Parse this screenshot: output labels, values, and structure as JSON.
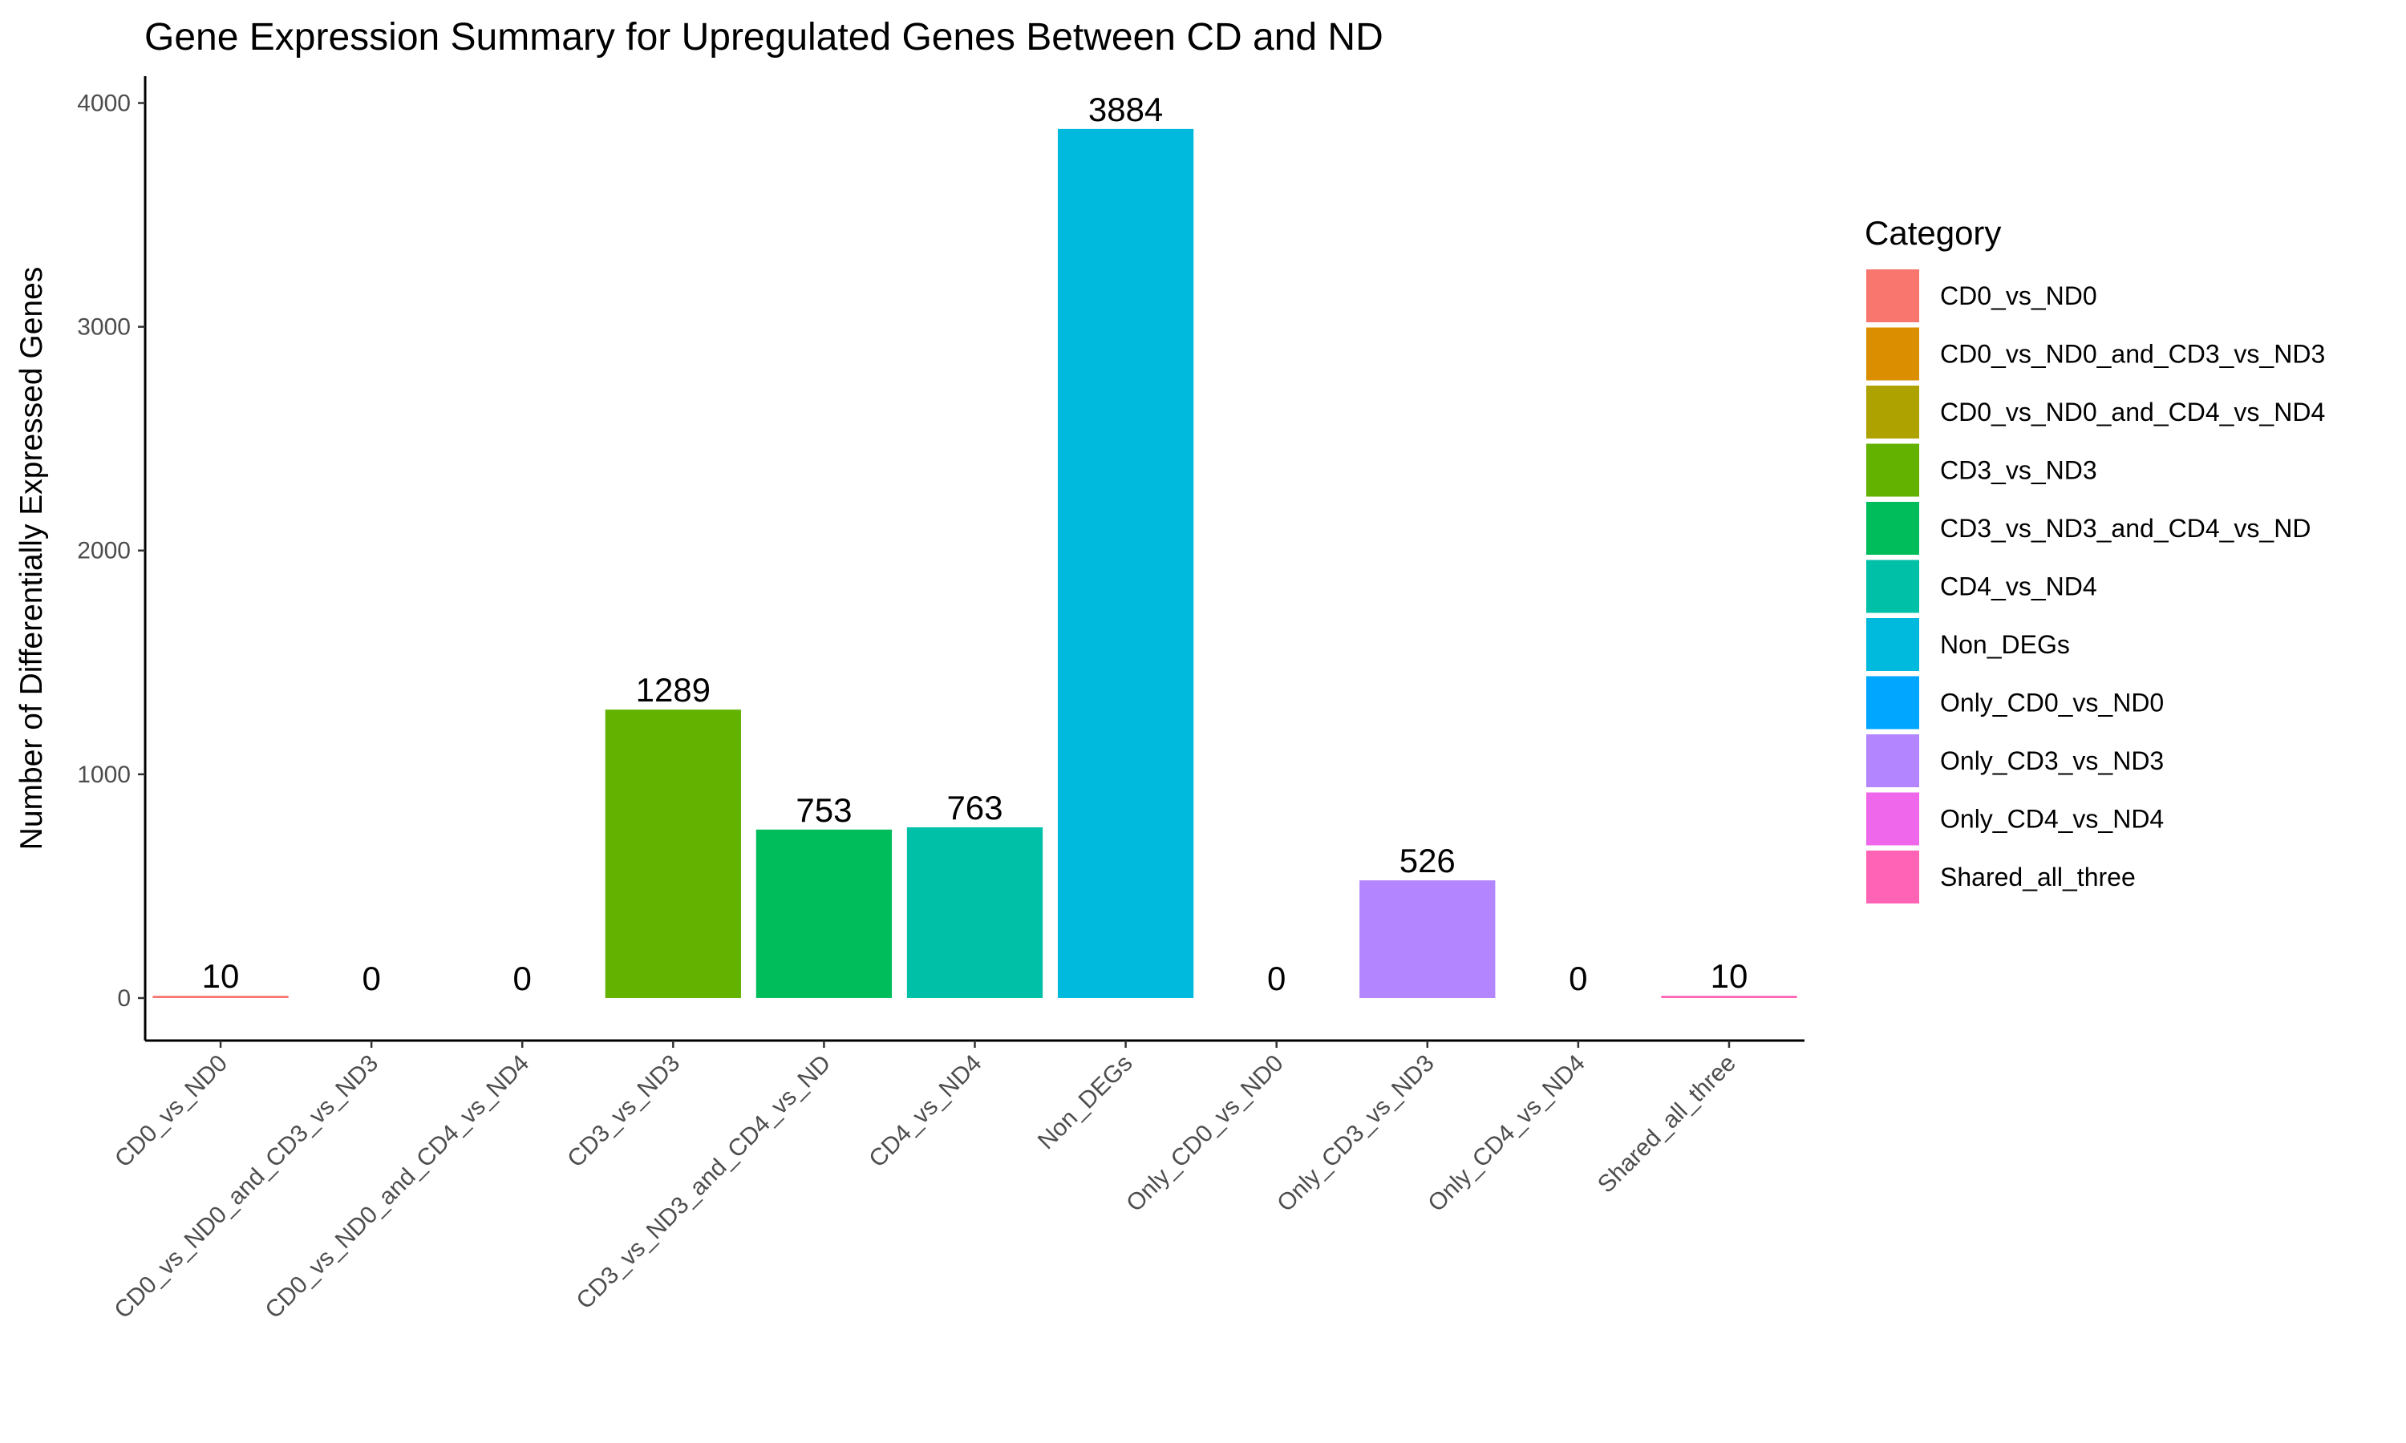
{
  "chart_data": {
    "type": "bar",
    "title": "Gene Expression Summary for Upregulated Genes Between CD and ND",
    "xlabel": "",
    "ylabel": "Number of Differentially Expressed Genes",
    "ylim": [
      -190,
      4120
    ],
    "yticks": [
      0,
      1000,
      2000,
      3000,
      4000
    ],
    "grid": false,
    "legend_title": "Category",
    "legend_position": "right",
    "categories": [
      "CD0_vs_ND0",
      "CD0_vs_ND0_and_CD3_vs_ND3",
      "CD0_vs_ND0_and_CD4_vs_ND4",
      "CD3_vs_ND3",
      "CD3_vs_ND3_and_CD4_vs_ND",
      "CD4_vs_ND4",
      "Non_DEGs",
      "Only_CD0_vs_ND0",
      "Only_CD3_vs_ND3",
      "Only_CD4_vs_ND4",
      "Shared_all_three"
    ],
    "values": [
      10,
      0,
      0,
      1289,
      753,
      763,
      3884,
      0,
      526,
      0,
      10
    ],
    "colors": [
      "#F8766D",
      "#DB8E00",
      "#AEA200",
      "#64B200",
      "#00BD5C",
      "#00C1A7",
      "#00BADE",
      "#00A6FF",
      "#B385FF",
      "#EF67EB",
      "#FF63B6"
    ]
  }
}
